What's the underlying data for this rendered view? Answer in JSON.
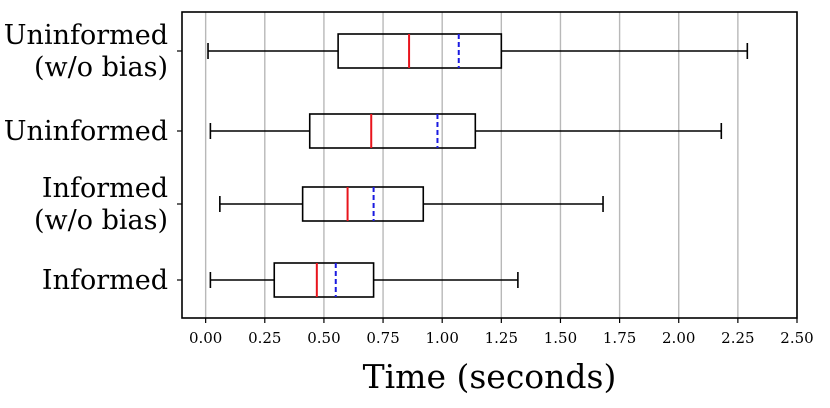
{
  "chart_data": {
    "type": "boxplot",
    "orientation": "horizontal",
    "title": "",
    "xlabel": "Time (seconds)",
    "ylabel": "",
    "xlim": [
      -0.1,
      2.5
    ],
    "xticks": [
      0.0,
      0.25,
      0.5,
      0.75,
      1.0,
      1.25,
      1.5,
      1.75,
      2.0,
      2.25,
      2.5
    ],
    "xtick_labels": [
      "0.00",
      "0.25",
      "0.50",
      "0.75",
      "1.00",
      "1.25",
      "1.50",
      "1.75",
      "2.00",
      "2.25",
      "2.50"
    ],
    "grid": "vertical",
    "median_color": "#e8141c",
    "mean_color": "#1a1ae0",
    "categories": [
      {
        "label_lines": [
          "Uninformed",
          "(w/o bias)"
        ],
        "whisker_low": 0.01,
        "q1": 0.56,
        "median": 0.86,
        "mean": 1.07,
        "q3": 1.25,
        "whisker_high": 2.29
      },
      {
        "label_lines": [
          "Uninformed"
        ],
        "whisker_low": 0.02,
        "q1": 0.44,
        "median": 0.7,
        "mean": 0.98,
        "q3": 1.14,
        "whisker_high": 2.18
      },
      {
        "label_lines": [
          "Informed",
          "(w/o bias)"
        ],
        "whisker_low": 0.06,
        "q1": 0.41,
        "median": 0.6,
        "mean": 0.71,
        "q3": 0.92,
        "whisker_high": 1.68
      },
      {
        "label_lines": [
          "Informed"
        ],
        "whisker_low": 0.02,
        "q1": 0.29,
        "median": 0.47,
        "mean": 0.55,
        "q3": 0.71,
        "whisker_high": 1.32
      }
    ]
  }
}
